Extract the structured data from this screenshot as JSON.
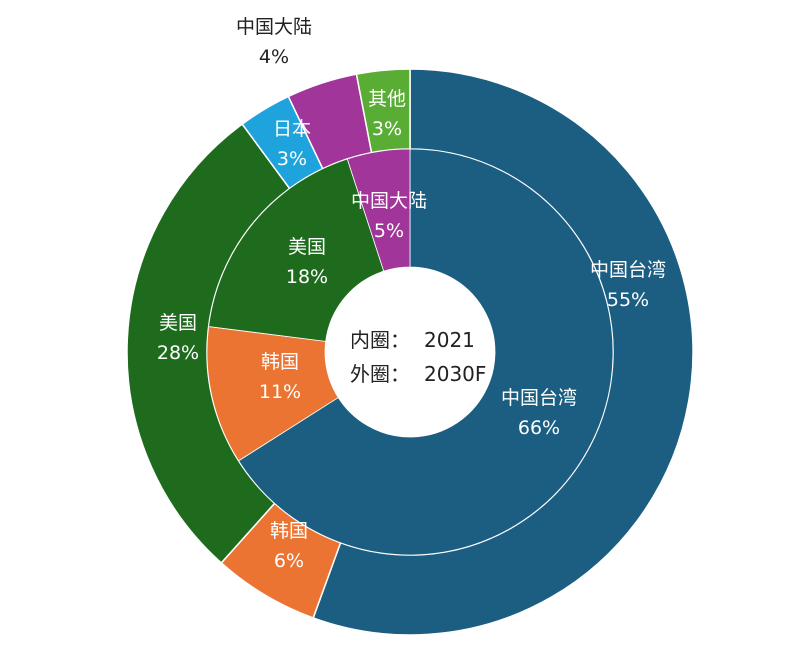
{
  "chart_data": {
    "type": "donut",
    "center_text": {
      "inner_label": "内圈：",
      "inner_value": "2021",
      "outer_label": "外圈：",
      "outer_value": "2030F"
    },
    "rings": [
      {
        "name": "2021",
        "ring": "inner",
        "slices": [
          {
            "label": "中国台湾",
            "value": 66,
            "value_label": "66%",
            "color": "#1b5e82"
          },
          {
            "label": "韩国",
            "value": 11,
            "value_label": "11%",
            "color": "#ec7432"
          },
          {
            "label": "美国",
            "value": 18,
            "value_label": "18%",
            "color": "#1e6b1e"
          },
          {
            "label": "中国大陆",
            "value": 5,
            "value_label": "5%",
            "color": "#a23599"
          }
        ]
      },
      {
        "name": "2030F",
        "ring": "outer",
        "slices": [
          {
            "label": "中国台湾",
            "value": 55,
            "value_label": "55%",
            "color": "#1b5e82"
          },
          {
            "label": "韩国",
            "value": 6,
            "value_label": "6%",
            "color": "#ec7432"
          },
          {
            "label": "美国",
            "value": 28,
            "value_label": "28%",
            "color": "#1e6b1e"
          },
          {
            "label": "日本",
            "value": 3,
            "value_label": "3%",
            "color": "#1fa3dc"
          },
          {
            "label": "中国大陆",
            "value": 4,
            "value_label": "4%",
            "color": "#a23599"
          },
          {
            "label": "其他",
            "value": 3,
            "value_label": "3%",
            "color": "#5aad34"
          }
        ]
      }
    ],
    "start_angle": "12 o'clock",
    "direction": "clockwise"
  }
}
